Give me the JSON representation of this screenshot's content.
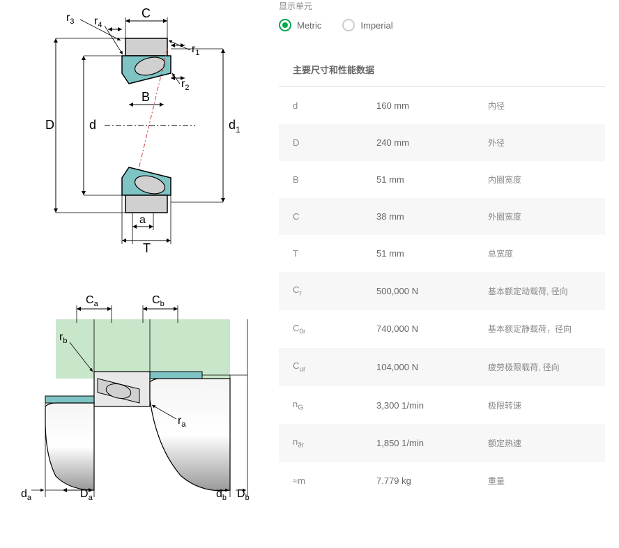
{
  "units": {
    "label": "显示单元",
    "options": [
      {
        "label": "Metric",
        "selected": true
      },
      {
        "label": "Imperial",
        "selected": false
      }
    ]
  },
  "section_title": "主要尺寸和性能数据",
  "table_rows": [
    {
      "symbol": "d",
      "sub": "",
      "value": "160 mm",
      "desc": "内径"
    },
    {
      "symbol": "D",
      "sub": "",
      "value": "240 mm",
      "desc": "外径"
    },
    {
      "symbol": "B",
      "sub": "",
      "value": "51 mm",
      "desc": "内圈宽度"
    },
    {
      "symbol": "C",
      "sub": "",
      "value": "38 mm",
      "desc": "外圈宽度"
    },
    {
      "symbol": "T",
      "sub": "",
      "value": "51 mm",
      "desc": "总宽度"
    },
    {
      "symbol": "C",
      "sub": "r",
      "value": "500,000 N",
      "desc": "基本额定动载荷, 径向"
    },
    {
      "symbol": "C",
      "sub": "0r",
      "value": "740,000 N",
      "desc": "基本额定静载荷，径向"
    },
    {
      "symbol": "C",
      "sub": "ur",
      "value": "104,000 N",
      "desc": "疲劳极限载荷, 径向"
    },
    {
      "symbol": "n",
      "sub": "G",
      "value": "3,300 1/min",
      "desc": "极限转速"
    },
    {
      "symbol": "n",
      "sub": "ϑr",
      "value": "1,850 1/min",
      "desc": "额定热速"
    },
    {
      "symbol": "≈m",
      "sub": "",
      "value": "7.779 kg",
      "desc": "重量"
    }
  ],
  "diagram1": {
    "labels": {
      "r3": "r",
      "r3_sub": "3",
      "r4": "r",
      "r4_sub": "4",
      "C": "C",
      "r1": "r",
      "r1_sub": "1",
      "r2": "r",
      "r2_sub": "2",
      "B": "B",
      "D": "D",
      "d": "d",
      "d1": "d",
      "d1_sub": "1",
      "a": "a",
      "T": "T"
    },
    "colors": {
      "outline": "#000000",
      "fill_gray": "#d0d0d0",
      "fill_teal": "#7fc4c4",
      "centerline": "#cc3333",
      "dim_line": "#000000"
    }
  },
  "diagram2": {
    "labels": {
      "Ca": "C",
      "Ca_sub": "a",
      "Cb": "C",
      "Cb_sub": "b",
      "rb": "r",
      "rb_sub": "b",
      "ra": "r",
      "ra_sub": "a",
      "da": "d",
      "da_sub": "a",
      "Da": "D",
      "Da_sub": "a",
      "db": "d",
      "db_sub": "b",
      "Db": "D",
      "Db_sub": "b"
    },
    "colors": {
      "outline": "#000000",
      "fill_green": "#c8e6c9",
      "fill_teal": "#7fc4c4",
      "fill_gray": "#e8e8e8",
      "shaft_gradient_light": "#f5f5f5",
      "shaft_gradient_dark": "#999999"
    }
  }
}
